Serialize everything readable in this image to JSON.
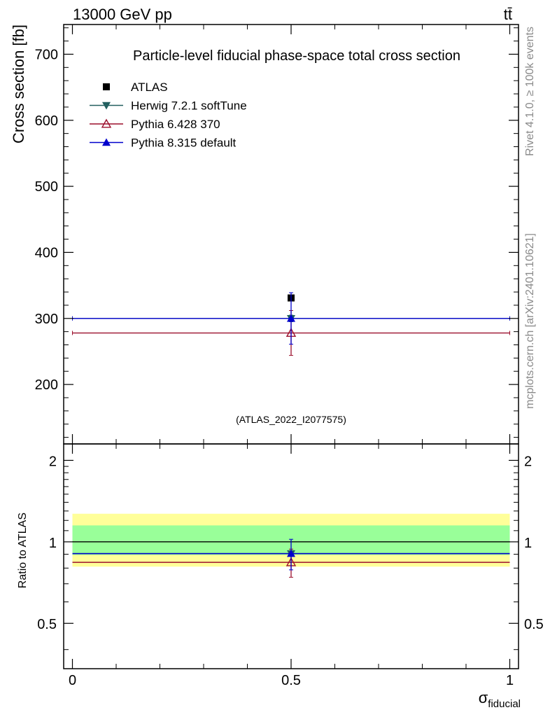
{
  "header": {
    "left": "13000 GeV pp",
    "right": "tt̄"
  },
  "side_labels": {
    "top": "Rivet 4.1.0, ≥ 100k events",
    "bottom": "mcplots.cern.ch [arXiv:2401.10621]"
  },
  "chart_data": [
    {
      "type": "scatter",
      "panel": "main",
      "title": "Particle-level fiducial phase-space total cross section",
      "xlabel": "",
      "ylabel": "Cross section [fb]",
      "xlim": [
        -0.02,
        1.02
      ],
      "ylim": [
        110,
        745
      ],
      "yticks": [
        200,
        300,
        400,
        500,
        600,
        700
      ],
      "watermark": "(ATLAS_2022_I2077575)",
      "legend_position": "top-left",
      "series": [
        {
          "name": "ATLAS",
          "color": "#000000",
          "marker": "square",
          "x": [
            0.5
          ],
          "y": [
            331
          ],
          "yerr_low": [
            0
          ],
          "yerr_high": [
            0
          ],
          "xerr": [
            0
          ]
        },
        {
          "name": "Herwig 7.2.1 softTune",
          "color": "#225f5f",
          "marker": "triangle-down",
          "x": [
            0.5
          ],
          "y": [
            300
          ],
          "yerr_low": [
            5
          ],
          "yerr_high": [
            5
          ],
          "xerr": [
            0.5
          ]
        },
        {
          "name": "Pythia 6.428 370",
          "color": "#9b0f2c",
          "marker": "triangle-up-open",
          "x": [
            0.5
          ],
          "y": [
            278
          ],
          "yerr_low": [
            34
          ],
          "yerr_high": [
            34
          ],
          "xerr": [
            0.5
          ]
        },
        {
          "name": "Pythia 8.315 default",
          "color": "#0000cc",
          "marker": "triangle-up",
          "x": [
            0.5
          ],
          "y": [
            300
          ],
          "yerr_low": [
            39
          ],
          "yerr_high": [
            39
          ],
          "xerr": [
            0.5
          ]
        }
      ]
    },
    {
      "type": "scatter",
      "panel": "ratio",
      "xlabel": "σ",
      "xlabel_sub": "fiducial",
      "ylabel": "Ratio to ATLAS",
      "xlim": [
        -0.02,
        1.02
      ],
      "ylim": [
        0.34,
        2.3
      ],
      "yticks": [
        0.5,
        1,
        2
      ],
      "ytick_labels": [
        "0.5",
        "1",
        "2"
      ],
      "xticks": [
        0,
        0.5,
        1
      ],
      "xtick_labels": [
        "0",
        "0.5",
        "1"
      ],
      "bands": [
        {
          "name": "outer",
          "color": "#ffff99",
          "low": 0.81,
          "high": 1.27
        },
        {
          "name": "inner",
          "color": "#99ff99",
          "low": 0.895,
          "high": 1.15
        }
      ],
      "series": [
        {
          "name": "ATLAS",
          "color": "#000000",
          "y": [
            1.0
          ]
        },
        {
          "name": "Herwig 7.2.1 softTune",
          "color": "#225f5f",
          "marker": "triangle-down",
          "y": [
            0.905
          ],
          "yerr_low": [
            0.015
          ],
          "yerr_high": [
            0.015
          ]
        },
        {
          "name": "Pythia 6.428 370",
          "color": "#9b0f2c",
          "marker": "triangle-up-open",
          "y": [
            0.84
          ],
          "yerr_low": [
            0.1
          ],
          "yerr_high": [
            0.1
          ]
        },
        {
          "name": "Pythia 8.315 default",
          "color": "#0000cc",
          "marker": "triangle-up",
          "y": [
            0.905
          ],
          "yerr_low": [
            0.117
          ],
          "yerr_high": [
            0.117
          ]
        }
      ]
    }
  ]
}
